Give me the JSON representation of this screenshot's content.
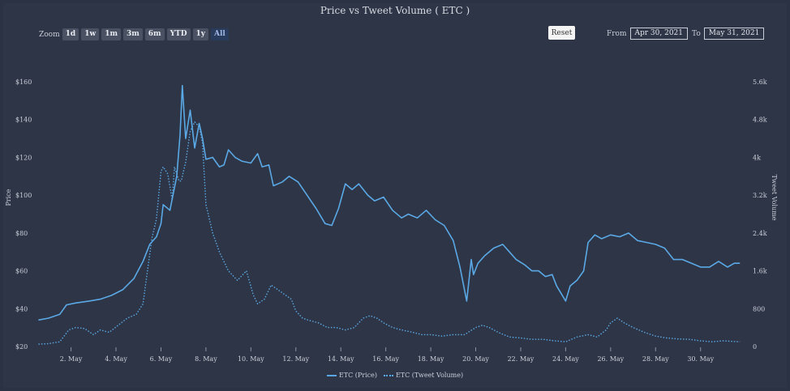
{
  "header": {
    "title": "Price vs Tweet Volume ( ETC )"
  },
  "toolbar": {
    "zoom_label": "Zoom",
    "zoom_buttons": [
      "1d",
      "1w",
      "1m",
      "3m",
      "6m",
      "YTD",
      "1y",
      "All"
    ],
    "active_zoom": "All",
    "reset_label": "Reset",
    "from_label": "From",
    "from_value": "Apr 30, 2021",
    "to_label": "To",
    "to_value": "May 31, 2021"
  },
  "colors": {
    "background": "#2e3546",
    "series": "#5aa9e6"
  },
  "chart_data": {
    "type": "line",
    "title": "Price vs Tweet Volume ( ETC )",
    "xlabel": "",
    "ylabel": "Price",
    "ylabel_right": "Tweet Volume",
    "x_range": [
      0.5,
      31.85
    ],
    "x_ticks": [
      {
        "day": 2,
        "label": "2. May"
      },
      {
        "day": 4,
        "label": "4. May"
      },
      {
        "day": 6,
        "label": "6. May"
      },
      {
        "day": 8,
        "label": "8. May"
      },
      {
        "day": 10,
        "label": "10. May"
      },
      {
        "day": 12,
        "label": "12. May"
      },
      {
        "day": 14,
        "label": "14. May"
      },
      {
        "day": 16,
        "label": "16. May"
      },
      {
        "day": 18,
        "label": "18. May"
      },
      {
        "day": 20,
        "label": "20. May"
      },
      {
        "day": 22,
        "label": "22. May"
      },
      {
        "day": 24,
        "label": "24. May"
      },
      {
        "day": 26,
        "label": "26. May"
      },
      {
        "day": 28,
        "label": "28. May"
      },
      {
        "day": 30,
        "label": "30. May"
      }
    ],
    "y_left_range": [
      20,
      160
    ],
    "y_left_ticks": [
      {
        "value": 20,
        "label": "$20"
      },
      {
        "value": 40,
        "label": "$40"
      },
      {
        "value": 60,
        "label": "$60"
      },
      {
        "value": 80,
        "label": "$80"
      },
      {
        "value": 100,
        "label": "$100"
      },
      {
        "value": 120,
        "label": "$120"
      },
      {
        "value": 140,
        "label": "$140"
      },
      {
        "value": 160,
        "label": "$160"
      }
    ],
    "y_right_range": [
      0,
      5600
    ],
    "y_right_ticks": [
      {
        "value": 0,
        "label": "0"
      },
      {
        "value": 800,
        "label": "800"
      },
      {
        "value": 1600,
        "label": "1.6k"
      },
      {
        "value": 2400,
        "label": "2.4k"
      },
      {
        "value": 3200,
        "label": "3.2k"
      },
      {
        "value": 4000,
        "label": "4k"
      },
      {
        "value": 4800,
        "label": "4.8k"
      },
      {
        "value": 5600,
        "label": "5.6k"
      }
    ],
    "grid": false,
    "legend_position": "bottom-center",
    "series": [
      {
        "name": "ETC (Price)",
        "axis": "left",
        "style": "solid",
        "x": [
          0.55,
          1,
          1.5,
          1.8,
          2.2,
          2.8,
          3.3,
          3.8,
          4.3,
          4.8,
          5.2,
          5.5,
          5.8,
          6.0,
          6.1,
          6.4,
          6.5,
          6.7,
          6.85,
          6.95,
          7.1,
          7.3,
          7.5,
          7.7,
          7.85,
          8.0,
          8.3,
          8.6,
          8.8,
          9.0,
          9.3,
          9.6,
          10.0,
          10.3,
          10.5,
          10.8,
          11.0,
          11.4,
          11.7,
          12.1,
          12.5,
          12.9,
          13.3,
          13.6,
          13.9,
          14.2,
          14.5,
          14.8,
          15.2,
          15.5,
          15.9,
          16.3,
          16.7,
          17.0,
          17.4,
          17.8,
          18.2,
          18.6,
          19.0,
          19.3,
          19.6,
          19.8,
          19.9,
          20.1,
          20.4,
          20.8,
          21.2,
          21.5,
          21.8,
          22.2,
          22.5,
          22.8,
          23.1,
          23.4,
          23.6,
          23.8,
          24.0,
          24.2,
          24.5,
          24.8,
          25.0,
          25.3,
          25.6,
          26.0,
          26.4,
          26.8,
          27.2,
          27.6,
          28.0,
          28.4,
          28.8,
          29.2,
          29.6,
          30.0,
          30.4,
          30.8,
          31.2,
          31.5,
          31.75
        ],
        "y": [
          34,
          35,
          37,
          42,
          43,
          44,
          45,
          47,
          50,
          56,
          65,
          74,
          78,
          85,
          95,
          92,
          98,
          110,
          132,
          158,
          130,
          145,
          125,
          138,
          130,
          119,
          120,
          115,
          116,
          124,
          120,
          118,
          117,
          122,
          115,
          116,
          105,
          107,
          110,
          107,
          100,
          93,
          85,
          84,
          93,
          106,
          103,
          106,
          100,
          97,
          99,
          92,
          88,
          90,
          88,
          92,
          87,
          84,
          76,
          62,
          44,
          66,
          58,
          64,
          68,
          72,
          74,
          70,
          66,
          63,
          60,
          60,
          57,
          58,
          52,
          48,
          44,
          52,
          55,
          60,
          75,
          79,
          77,
          79,
          78,
          80,
          76,
          75,
          74,
          72,
          66,
          66,
          64,
          62,
          62,
          65,
          62,
          64,
          64
        ]
      },
      {
        "name": "ETC (Tweet Volume)",
        "axis": "right",
        "style": "dotted",
        "x": [
          0.55,
          1,
          1.5,
          1.9,
          2.2,
          2.6,
          3.0,
          3.3,
          3.7,
          4.1,
          4.5,
          4.9,
          5.2,
          5.4,
          5.6,
          5.8,
          6.0,
          6.1,
          6.3,
          6.5,
          6.6,
          6.8,
          6.9,
          7.1,
          7.3,
          7.5,
          7.7,
          7.85,
          8.0,
          8.1,
          8.3,
          8.6,
          9.0,
          9.4,
          9.8,
          10.1,
          10.3,
          10.6,
          10.9,
          11.2,
          11.5,
          11.8,
          12.0,
          12.3,
          12.6,
          13.0,
          13.4,
          13.8,
          14.2,
          14.6,
          15.0,
          15.3,
          15.6,
          15.9,
          16.3,
          16.7,
          17.2,
          17.6,
          18.0,
          18.5,
          19.0,
          19.5,
          20.0,
          20.3,
          20.6,
          21.0,
          21.5,
          22.0,
          22.5,
          23.0,
          23.5,
          24.0,
          24.5,
          25.0,
          25.4,
          25.8,
          26.0,
          26.3,
          26.6,
          27.0,
          27.5,
          28.0,
          28.5,
          29.0,
          29.5,
          30.0,
          30.5,
          31.0,
          31.75
        ],
        "y": [
          50,
          60,
          100,
          350,
          400,
          380,
          250,
          350,
          300,
          450,
          600,
          680,
          900,
          1600,
          2300,
          2700,
          3700,
          3800,
          3650,
          3100,
          3800,
          3500,
          3500,
          3900,
          4550,
          4750,
          4650,
          4300,
          3000,
          2800,
          2400,
          2000,
          1600,
          1400,
          1600,
          1100,
          900,
          1000,
          1300,
          1200,
          1100,
          1000,
          750,
          600,
          550,
          500,
          400,
          400,
          350,
          400,
          600,
          650,
          600,
          500,
          400,
          350,
          300,
          250,
          250,
          220,
          250,
          250,
          400,
          450,
          400,
          300,
          200,
          180,
          150,
          150,
          120,
          100,
          200,
          250,
          200,
          350,
          500,
          600,
          500,
          400,
          300,
          220,
          180,
          160,
          150,
          120,
          100,
          120,
          100
        ]
      }
    ]
  }
}
